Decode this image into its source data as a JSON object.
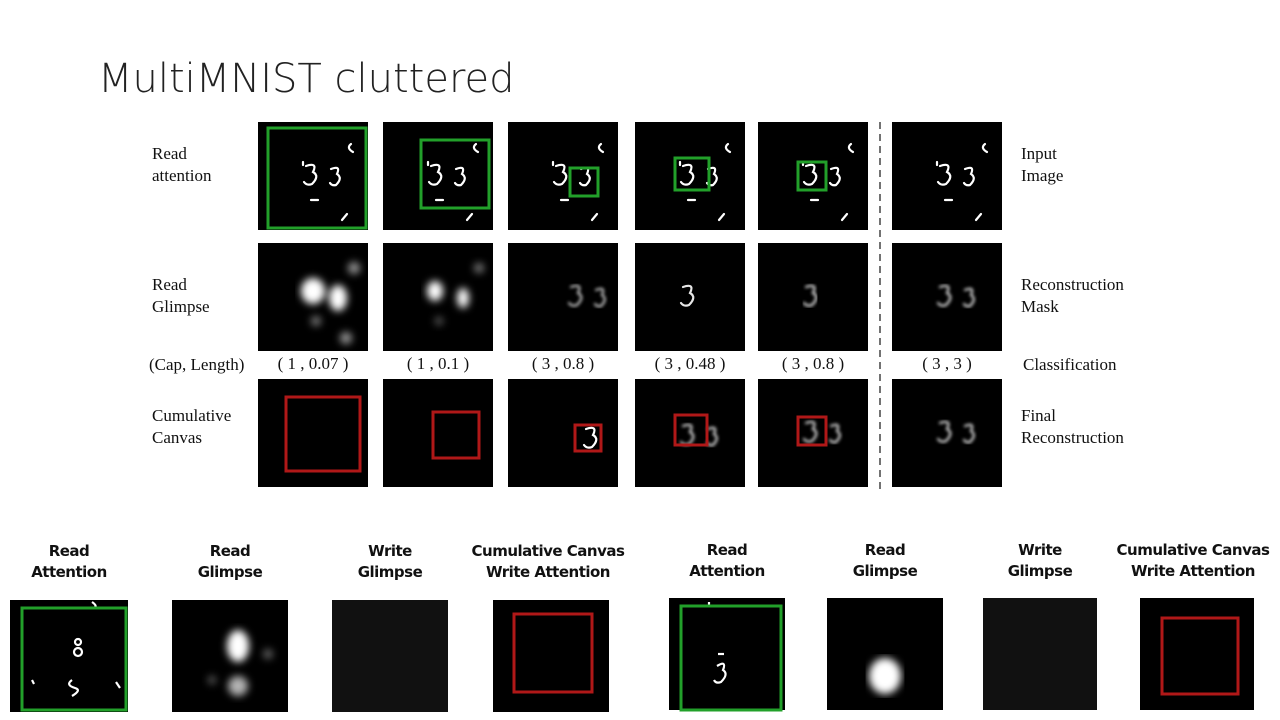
{
  "title": "MultiMNIST cluttered",
  "top_figure": {
    "row_labels": [
      "Read attention",
      "Read Glimpse",
      "(Cap, Length)",
      "Cumulative Canvas"
    ],
    "right_labels": [
      "Input Image",
      "Reconstruction Mask",
      "Classification",
      "Final Reconstruction"
    ],
    "cap_length": [
      "( 1 , 0.07 )",
      "( 1 , 0.1 )",
      "( 3 , 0.8 )",
      "( 3 , 0.48 )",
      "( 3 , 0.8 )",
      "( 3 , 3 )"
    ]
  },
  "bottom_figure": {
    "headers": [
      "Read Attention",
      "Read Glimpse",
      "Write Glimpse",
      "Cumulative Canvas Write Attention",
      "Read Attention",
      "Read Glimpse",
      "Write Glimpse",
      "Cumulative Canvas Write Attention"
    ]
  }
}
